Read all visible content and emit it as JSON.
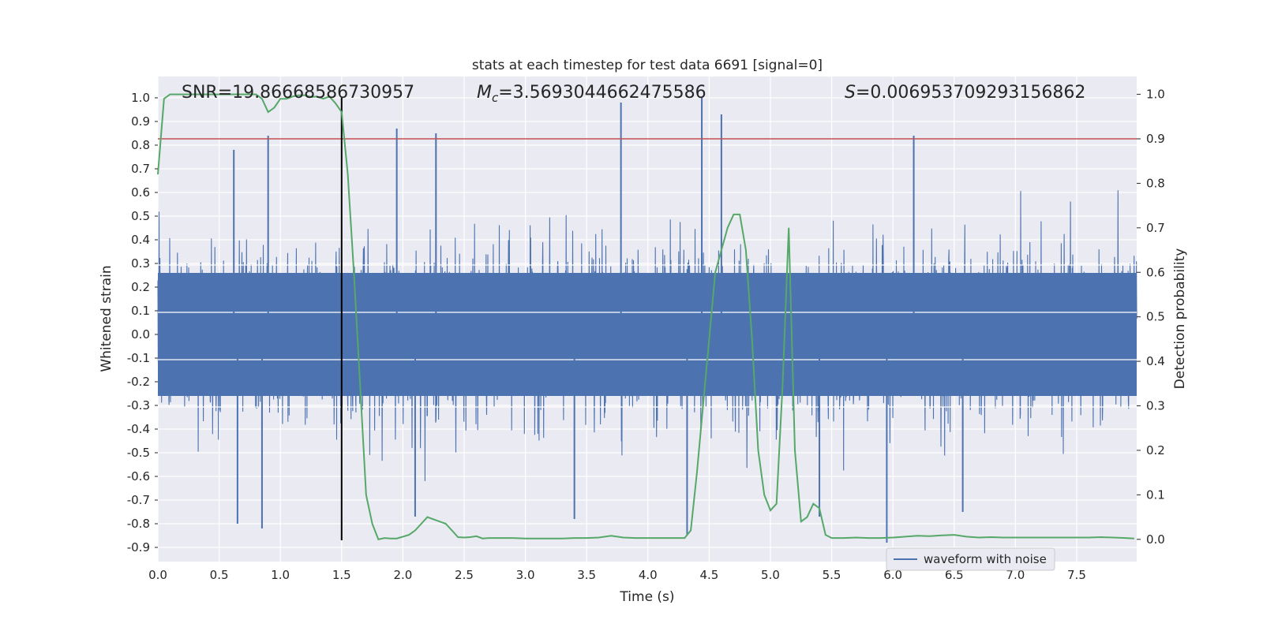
{
  "chart_data": {
    "type": "line",
    "title": "stats at each timestep for test data 6691 [signal=0]",
    "xlabel": "Time (s)",
    "ylabel_left": "Whitened strain",
    "ylabel_right": "Detection probability",
    "xlim": [
      0.0,
      7.99
    ],
    "ylim_left": [
      -0.96,
      1.09
    ],
    "ylim_right": [
      -0.05,
      1.04
    ],
    "x_ticks": [
      "0.0",
      "0.5",
      "1.0",
      "1.5",
      "2.0",
      "2.5",
      "3.0",
      "3.5",
      "4.0",
      "4.5",
      "5.0",
      "5.5",
      "6.0",
      "6.5",
      "7.0",
      "7.5"
    ],
    "y_ticks_left": [
      "1.0",
      "0.9",
      "0.8",
      "0.7",
      "0.6",
      "0.5",
      "0.4",
      "0.3",
      "0.2",
      "0.1",
      "0.0",
      "-0.1",
      "-0.2",
      "-0.3",
      "-0.4",
      "-0.5",
      "-0.6",
      "-0.7",
      "-0.8",
      "-0.9"
    ],
    "y_ticks_right": [
      "1.0",
      "0.9",
      "0.8",
      "0.7",
      "0.6",
      "0.5",
      "0.4",
      "0.3",
      "0.2",
      "0.1",
      "0.0"
    ],
    "grid": true,
    "legend_location": "lower-right",
    "annotations": {
      "snr": "SNR=19.86668586730957",
      "mc_symbol": "M",
      "mc_sub": "c",
      "mc_value": "=3.5693044662475586",
      "s_symbol": "S",
      "s_value": "=0.006953709293156862"
    },
    "threshold_line": {
      "axis": "right",
      "value": 0.9,
      "color": "#c44e52"
    },
    "marker_line": {
      "x": 1.5,
      "y_range_left": [
        -0.87,
        1.0
      ],
      "color": "#000000"
    },
    "series": [
      {
        "name": "waveform with noise",
        "axis": "left",
        "color": "#4c72b0",
        "envelope_note": "dense noise waveform; notable peaks listed",
        "peaks": [
          {
            "x": 0.62,
            "y": 0.78
          },
          {
            "x": 0.9,
            "y": 0.84
          },
          {
            "x": 1.95,
            "y": 0.87
          },
          {
            "x": 2.27,
            "y": 0.85
          },
          {
            "x": 3.78,
            "y": 0.98
          },
          {
            "x": 4.44,
            "y": 1.0
          },
          {
            "x": 4.6,
            "y": 0.93
          },
          {
            "x": 6.17,
            "y": 0.84
          },
          {
            "x": 0.85,
            "y": -0.82
          },
          {
            "x": 0.65,
            "y": -0.8
          },
          {
            "x": 3.4,
            "y": -0.78
          },
          {
            "x": 4.32,
            "y": -0.85
          },
          {
            "x": 5.95,
            "y": -0.88
          },
          {
            "x": 6.57,
            "y": -0.75
          },
          {
            "x": 2.1,
            "y": -0.77
          },
          {
            "x": 5.4,
            "y": -0.77
          }
        ]
      },
      {
        "name": "Detection probability",
        "axis": "right",
        "color": "#55a868",
        "x": [
          0.0,
          0.05,
          0.1,
          0.15,
          0.2,
          0.25,
          0.3,
          0.35,
          0.4,
          0.45,
          0.5,
          0.55,
          0.6,
          0.65,
          0.7,
          0.75,
          0.8,
          0.85,
          0.9,
          0.95,
          1.0,
          1.05,
          1.1,
          1.15,
          1.2,
          1.25,
          1.3,
          1.35,
          1.4,
          1.45,
          1.5,
          1.55,
          1.6,
          1.65,
          1.7,
          1.75,
          1.8,
          1.85,
          1.9,
          1.95,
          2.0,
          2.05,
          2.1,
          2.15,
          2.2,
          2.25,
          2.3,
          2.35,
          2.4,
          2.45,
          2.5,
          2.55,
          2.6,
          2.65,
          2.7,
          2.8,
          2.9,
          3.0,
          3.1,
          3.2,
          3.3,
          3.4,
          3.5,
          3.6,
          3.7,
          3.8,
          3.9,
          4.0,
          4.1,
          4.2,
          4.3,
          4.35,
          4.4,
          4.45,
          4.5,
          4.55,
          4.6,
          4.65,
          4.7,
          4.75,
          4.8,
          4.85,
          4.9,
          4.95,
          5.0,
          5.05,
          5.1,
          5.15,
          5.2,
          5.25,
          5.3,
          5.35,
          5.4,
          5.45,
          5.5,
          5.6,
          5.7,
          5.8,
          5.9,
          6.0,
          6.1,
          6.2,
          6.3,
          6.4,
          6.5,
          6.6,
          6.7,
          6.8,
          6.9,
          7.0,
          7.1,
          7.2,
          7.3,
          7.4,
          7.5,
          7.6,
          7.7,
          7.8,
          7.9,
          7.97
        ],
        "y": [
          0.82,
          0.99,
          1.0,
          1.0,
          1.0,
          1.0,
          1.0,
          1.0,
          1.0,
          1.0,
          1.0,
          1.0,
          1.0,
          1.0,
          1.0,
          1.0,
          1.0,
          0.99,
          0.96,
          0.97,
          0.99,
          0.99,
          0.995,
          0.998,
          0.998,
          0.994,
          0.995,
          0.99,
          0.995,
          0.98,
          0.96,
          0.82,
          0.6,
          0.35,
          0.1,
          0.035,
          0.0,
          0.003,
          0.002,
          0.002,
          0.006,
          0.01,
          0.02,
          0.035,
          0.05,
          0.045,
          0.04,
          0.035,
          0.02,
          0.005,
          0.004,
          0.005,
          0.007,
          0.002,
          0.003,
          0.003,
          0.003,
          0.002,
          0.002,
          0.002,
          0.002,
          0.003,
          0.003,
          0.004,
          0.008,
          0.004,
          0.003,
          0.003,
          0.003,
          0.003,
          0.003,
          0.02,
          0.15,
          0.3,
          0.45,
          0.6,
          0.65,
          0.7,
          0.73,
          0.73,
          0.65,
          0.45,
          0.2,
          0.1,
          0.065,
          0.08,
          0.35,
          0.7,
          0.2,
          0.04,
          0.05,
          0.08,
          0.07,
          0.01,
          0.003,
          0.003,
          0.004,
          0.003,
          0.003,
          0.004,
          0.006,
          0.008,
          0.007,
          0.009,
          0.01,
          0.006,
          0.004,
          0.005,
          0.004,
          0.004,
          0.004,
          0.004,
          0.004,
          0.004,
          0.004,
          0.004,
          0.005,
          0.004,
          0.003,
          0.002
        ]
      }
    ]
  }
}
